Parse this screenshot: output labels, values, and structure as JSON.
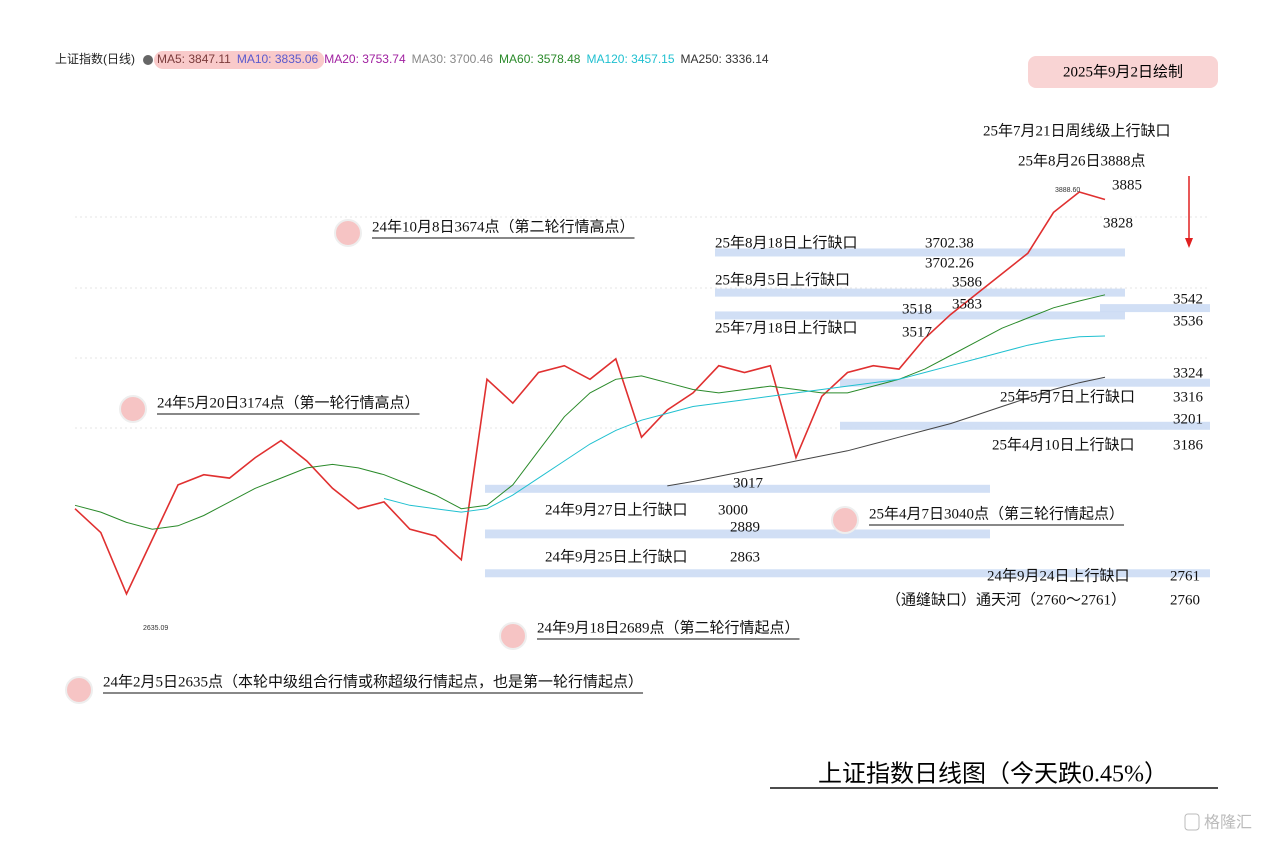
{
  "header": {
    "symbol": "上证指数(日线)",
    "date_badge": "2025年9月2日绘制"
  },
  "chart_data": {
    "type": "line",
    "title": "上证指数日线图（今天跌0.45%）",
    "legend": [
      {
        "text": "MA5: 3847.11",
        "color": "#7a3b3b"
      },
      {
        "text": "MA10: 3835.06",
        "color": "#5a5acd"
      },
      {
        "text": "MA20: 3753.74",
        "color": "#a020a0"
      },
      {
        "text": "MA30: 3700.46",
        "color": "#888888"
      },
      {
        "text": "MA60: 3578.48",
        "color": "#2a8a2a"
      },
      {
        "text": "MA120: 3457.15",
        "color": "#20c0d0"
      },
      {
        "text": "MA250: 3336.14",
        "color": "#333333"
      }
    ],
    "x": [
      0,
      1,
      2,
      3,
      4,
      5,
      6,
      7,
      8,
      9,
      10,
      11,
      12,
      13,
      14,
      15,
      16,
      17,
      18,
      19,
      20,
      21,
      22,
      23,
      24,
      25,
      26,
      27,
      28,
      29,
      30,
      31,
      32,
      33,
      34,
      35,
      36,
      37,
      38,
      39,
      40
    ],
    "xlim": [
      0,
      40
    ],
    "ylim": [
      2500,
      4150
    ],
    "series": [
      {
        "color": "#e03030",
        "values": [
          2950,
          2880,
          2700,
          2860,
          3020,
          3050,
          3040,
          3100,
          3150,
          3090,
          3010,
          2950,
          2970,
          2890,
          2870,
          2800,
          3330,
          3260,
          3350,
          3370,
          3330,
          3390,
          3160,
          3240,
          3290,
          3370,
          3350,
          3370,
          3100,
          3280,
          3350,
          3370,
          3360,
          3450,
          3520,
          3580,
          3640,
          3700,
          3820,
          3880,
          3858
        ]
      },
      {
        "color": "#2a8a2a",
        "values": [
          2960,
          2940,
          2910,
          2890,
          2900,
          2930,
          2970,
          3010,
          3040,
          3070,
          3080,
          3070,
          3050,
          3020,
          2990,
          2950,
          2960,
          3020,
          3120,
          3220,
          3290,
          3330,
          3340,
          3320,
          3300,
          3290,
          3300,
          3310,
          3300,
          3290,
          3290,
          3310,
          3330,
          3360,
          3400,
          3440,
          3480,
          3510,
          3540,
          3560,
          3578
        ]
      },
      {
        "color": "#20c0d0",
        "values": [
          null,
          null,
          null,
          null,
          null,
          null,
          null,
          null,
          null,
          null,
          null,
          null,
          2980,
          2960,
          2950,
          2940,
          2950,
          2990,
          3040,
          3090,
          3140,
          3180,
          3210,
          3230,
          3250,
          3260,
          3270,
          3280,
          3290,
          3300,
          3310,
          3320,
          3330,
          3350,
          3370,
          3390,
          3410,
          3430,
          3445,
          3455,
          3457
        ]
      },
      {
        "color": "#444444",
        "values": [
          null,
          null,
          null,
          null,
          null,
          null,
          null,
          null,
          null,
          null,
          null,
          null,
          null,
          null,
          null,
          null,
          null,
          null,
          null,
          null,
          null,
          null,
          null,
          3017,
          3030,
          3045,
          3060,
          3075,
          3090,
          3105,
          3120,
          3140,
          3160,
          3180,
          3200,
          3225,
          3250,
          3275,
          3300,
          3320,
          3336
        ]
      }
    ],
    "gaps": [
      {
        "label": "25年8月18日上行缺口",
        "upper": 3702.38,
        "lower": 3702.26
      },
      {
        "label": "25年8月5日上行缺口",
        "upper": 3586,
        "lower": 3583
      },
      {
        "label": "25年7月18日上行缺口",
        "upper": 3518,
        "lower": 3517
      },
      {
        "upper": 3542,
        "lower": 3536
      },
      {
        "label": "25年5月7日上行缺口",
        "upper": 3324,
        "lower": 3316
      },
      {
        "label": "25年4月10日上行缺口",
        "upper": 3201,
        "lower": 3186
      },
      {
        "label": "24年9月27日上行缺口",
        "upper": 3017,
        "lower": 3000
      },
      {
        "label": "24年9月25日上行缺口",
        "upper": 2889,
        "lower": 2863
      },
      {
        "label": "24年9月24日上行缺口",
        "upper": 2761,
        "lower": 2760
      }
    ],
    "milestones": [
      "24年10月8日3674点（第二轮行情高点）",
      "24年5月20日3174点（第一轮行情高点）",
      "25年4月7日3040点（第三轮行情起点）",
      "24年9月18日2689点（第二轮行情起点）",
      "24年2月5日2635点（本轮中级组合行情或称超级行情起点，也是第一轮行情起点）"
    ],
    "annotations": [
      "25年7月21日周线级上行缺口",
      "25年8月26日3888点",
      "3885",
      "3828",
      "（通缝缺口）通天河（2760～2761）"
    ],
    "small_labels": [
      "3888.60",
      "2635.09"
    ]
  },
  "watermark": "格隆汇"
}
